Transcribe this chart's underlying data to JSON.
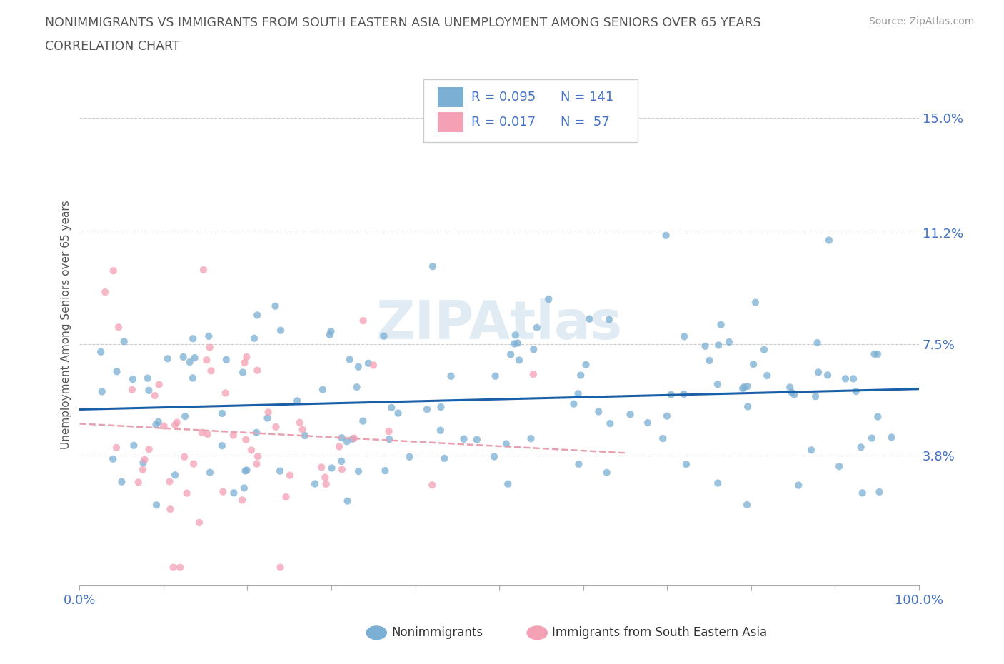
{
  "title_line1": "NONIMMIGRANTS VS IMMIGRANTS FROM SOUTH EASTERN ASIA UNEMPLOYMENT AMONG SENIORS OVER 65 YEARS",
  "title_line2": "CORRELATION CHART",
  "source_text": "Source: ZipAtlas.com",
  "ylabel": "Unemployment Among Seniors over 65 years",
  "xmin": 0.0,
  "xmax": 1.0,
  "ymin": -0.005,
  "ymax": 0.168,
  "yticks": [
    0.038,
    0.075,
    0.112,
    0.15
  ],
  "ytick_labels": [
    "3.8%",
    "7.5%",
    "11.2%",
    "15.0%"
  ],
  "xtick_positions": [
    0.0,
    0.1,
    0.2,
    0.3,
    0.4,
    0.5,
    0.6,
    0.7,
    0.8,
    0.9,
    1.0
  ],
  "xtick_labels_show": [
    "0.0%",
    "",
    "",
    "",
    "",
    "",
    "",
    "",
    "",
    "",
    "100.0%"
  ],
  "blue_color": "#7bafd4",
  "pink_color": "#f4a0b5",
  "blue_line_color": "#1a5fa8",
  "pink_line_color": "#e8a0b0",
  "grid_color": "#cccccc",
  "title_color": "#555555",
  "label_color": "#4472c4",
  "axis_color": "#aaaaaa",
  "nonimmigrants_label": "Nonimmigrants",
  "immigrants_label": "Immigrants from South Eastern Asia",
  "blue_R": 0.095,
  "blue_N": 141,
  "pink_R": 0.017,
  "pink_N": 57,
  "seed": 42
}
